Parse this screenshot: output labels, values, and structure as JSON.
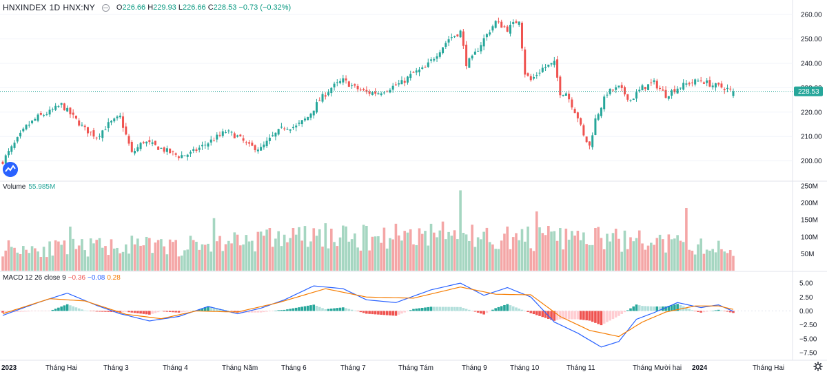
{
  "header": {
    "symbol": "HNXINDEX",
    "interval": "1D",
    "exchange": "HNX:NY",
    "ohlc": {
      "o_label": "O",
      "o": "226.66",
      "h_label": "H",
      "h": "229.93",
      "l_label": "L",
      "l": "226.66",
      "c_label": "C",
      "c": "228.53",
      "change": "−0.73 (−0.32%)"
    }
  },
  "volume_pane": {
    "label": "Volume",
    "value": "55.985M"
  },
  "macd_pane": {
    "label": "MACD 12 26 close 9",
    "hist": "−0.36",
    "macd": "−0.08",
    "signal": "0.28"
  },
  "colors": {
    "up": "#26a69a",
    "down": "#ef5350",
    "up_vol": "#a5d6c1",
    "down_vol": "#f4a6a6",
    "macd": "#2962ff",
    "signal": "#f57c00",
    "price_tag": "#26a69a"
  },
  "icons": {
    "logo": "tradingview-logo-icon",
    "settings": "gear-icon",
    "visibility": "eye-icon"
  },
  "chart_data": {
    "type": "candlestick",
    "last_price": 228.53,
    "last_price_label": "228.53",
    "price_axis": {
      "ticks": [
        200,
        210,
        220,
        230,
        240,
        250,
        260
      ],
      "tick_labels": [
        "200.00",
        "210.00",
        "220.00",
        "230.00",
        "240.00",
        "250.00",
        "260.00"
      ],
      "ylim": [
        192,
        262
      ]
    },
    "volume_axis": {
      "ticks": [
        50,
        100,
        150,
        200,
        250
      ],
      "tick_labels": [
        "50M",
        "100M",
        "150M",
        "200M",
        "250M"
      ],
      "ylim": [
        0,
        250
      ]
    },
    "macd_axis": {
      "ticks": [
        5,
        2.5,
        0,
        -2.5,
        -5,
        -7.5
      ],
      "tick_labels": [
        "5.00",
        "2.50",
        "0.00",
        "−2.50",
        "−5.00",
        "−7.50"
      ],
      "ylim": [
        -8,
        6
      ]
    },
    "time_axis": {
      "labels": [
        "2023",
        "Tháng Hai",
        "Tháng 3",
        "Tháng 4",
        "Tháng Năm",
        "Tháng 6",
        "Tháng 7",
        "Tháng Tám",
        "Tháng 9",
        "Tháng 10",
        "Tháng 11",
        "Tháng Mười hai",
        "2024",
        "Tháng Hai"
      ],
      "bold": [
        0,
        12
      ]
    },
    "price_path": [
      [
        0,
        200
      ],
      [
        4,
        207
      ],
      [
        8,
        214
      ],
      [
        12,
        218
      ],
      [
        16,
        220
      ],
      [
        20,
        223
      ],
      [
        24,
        218
      ],
      [
        28,
        213
      ],
      [
        32,
        210
      ],
      [
        36,
        215
      ],
      [
        40,
        218
      ],
      [
        44,
        203
      ],
      [
        48,
        208
      ],
      [
        52,
        206
      ],
      [
        56,
        204
      ],
      [
        60,
        202
      ],
      [
        64,
        203
      ],
      [
        68,
        206
      ],
      [
        72,
        209
      ],
      [
        76,
        212
      ],
      [
        80,
        210
      ],
      [
        84,
        206
      ],
      [
        88,
        205
      ],
      [
        92,
        210
      ],
      [
        96,
        214
      ],
      [
        100,
        214
      ],
      [
        104,
        218
      ],
      [
        108,
        225
      ],
      [
        112,
        230
      ],
      [
        116,
        233
      ],
      [
        120,
        230
      ],
      [
        124,
        228
      ],
      [
        128,
        228
      ],
      [
        132,
        230
      ],
      [
        136,
        232
      ],
      [
        140,
        236
      ],
      [
        144,
        238
      ],
      [
        148,
        244
      ],
      [
        152,
        250
      ],
      [
        156,
        253
      ],
      [
        158,
        240
      ],
      [
        160,
        242
      ],
      [
        164,
        250
      ],
      [
        168,
        257
      ],
      [
        172,
        254
      ],
      [
        176,
        258
      ],
      [
        178,
        236
      ],
      [
        180,
        233
      ],
      [
        184,
        238
      ],
      [
        188,
        240
      ],
      [
        190,
        228
      ],
      [
        192,
        228
      ],
      [
        196,
        218
      ],
      [
        198,
        210
      ],
      [
        200,
        206
      ],
      [
        202,
        217
      ],
      [
        206,
        228
      ],
      [
        210,
        230
      ],
      [
        214,
        225
      ],
      [
        218,
        230
      ],
      [
        222,
        232
      ],
      [
        226,
        227
      ],
      [
        230,
        230
      ],
      [
        234,
        232
      ],
      [
        238,
        233
      ],
      [
        242,
        231
      ],
      [
        246,
        230
      ],
      [
        249,
        228.5
      ]
    ],
    "volume_path": [
      [
        0,
        70
      ],
      [
        20,
        65
      ],
      [
        40,
        75
      ],
      [
        60,
        70
      ],
      [
        80,
        90
      ],
      [
        100,
        100
      ],
      [
        120,
        95
      ],
      [
        140,
        110
      ],
      [
        160,
        100
      ],
      [
        180,
        95
      ],
      [
        200,
        95
      ],
      [
        220,
        85
      ],
      [
        240,
        70
      ],
      [
        249,
        58
      ]
    ],
    "volume_spikes": [
      [
        23,
        130
      ],
      [
        72,
        155
      ],
      [
        156,
        237
      ],
      [
        182,
        175
      ],
      [
        233,
        185
      ],
      [
        110,
        140
      ],
      [
        150,
        145
      ]
    ],
    "macd_path": [
      [
        0,
        -0.8
      ],
      [
        12,
        1.5
      ],
      [
        22,
        3.2
      ],
      [
        32,
        1.0
      ],
      [
        40,
        -0.5
      ],
      [
        50,
        -1.8
      ],
      [
        60,
        -1.0
      ],
      [
        70,
        0.8
      ],
      [
        80,
        -0.5
      ],
      [
        88,
        0.5
      ],
      [
        96,
        2.0
      ],
      [
        106,
        4.5
      ],
      [
        116,
        4.0
      ],
      [
        124,
        2.0
      ],
      [
        134,
        1.5
      ],
      [
        146,
        3.8
      ],
      [
        156,
        5.0
      ],
      [
        164,
        2.8
      ],
      [
        172,
        4.2
      ],
      [
        180,
        2.5
      ],
      [
        188,
        -2.0
      ],
      [
        196,
        -4.0
      ],
      [
        204,
        -6.5
      ],
      [
        210,
        -5.5
      ],
      [
        216,
        -1.5
      ],
      [
        222,
        -0.3
      ],
      [
        230,
        1.5
      ],
      [
        238,
        0.6
      ],
      [
        244,
        1.1
      ],
      [
        249,
        -0.08
      ]
    ],
    "signal_path": [
      [
        0,
        -0.5
      ],
      [
        16,
        2.2
      ],
      [
        28,
        1.8
      ],
      [
        42,
        -0.6
      ],
      [
        54,
        -1.4
      ],
      [
        66,
        0.0
      ],
      [
        80,
        -0.2
      ],
      [
        94,
        1.5
      ],
      [
        110,
        4.0
      ],
      [
        124,
        2.5
      ],
      [
        140,
        2.3
      ],
      [
        156,
        4.3
      ],
      [
        168,
        3.0
      ],
      [
        180,
        2.9
      ],
      [
        190,
        -1.0
      ],
      [
        200,
        -3.5
      ],
      [
        210,
        -4.6
      ],
      [
        218,
        -2.0
      ],
      [
        226,
        -0.2
      ],
      [
        236,
        0.9
      ],
      [
        244,
        0.9
      ],
      [
        249,
        0.28
      ]
    ]
  }
}
